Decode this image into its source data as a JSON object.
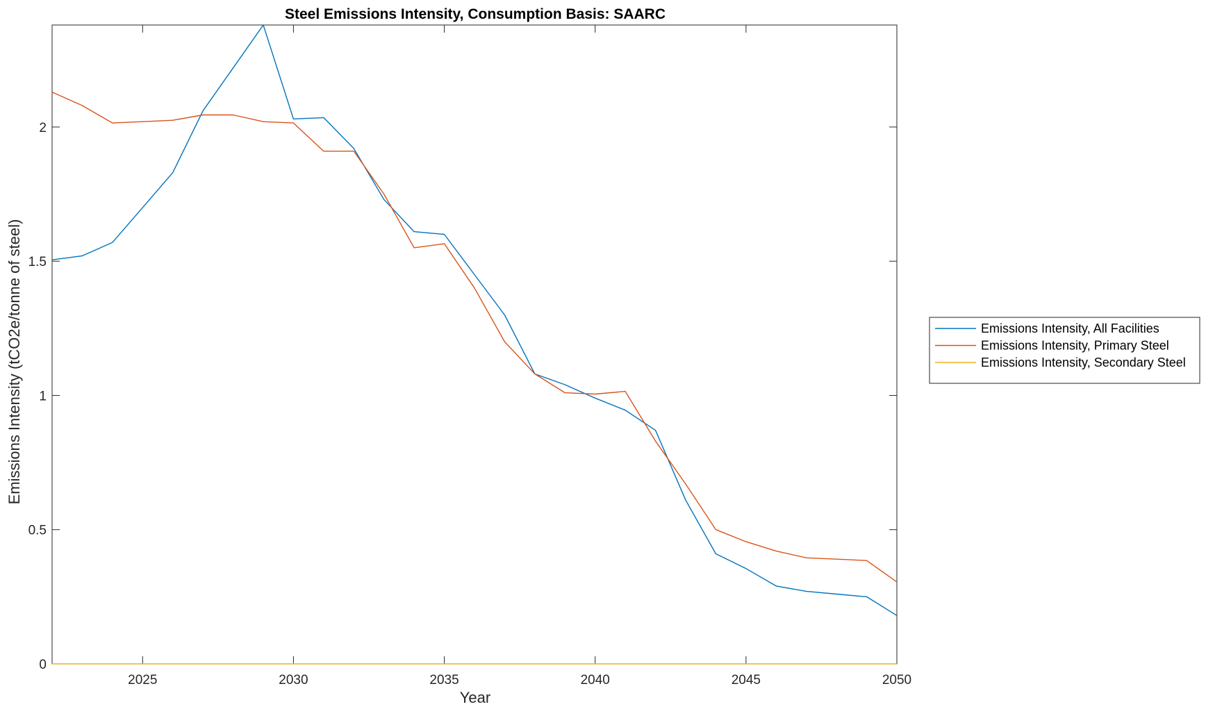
{
  "chart_data": {
    "type": "line",
    "title": "Steel Emissions Intensity, Consumption Basis: SAARC",
    "xlabel": "Year",
    "ylabel": "Emissions Intensity (tCO2e/tonne of steel)",
    "xlim": [
      2022,
      2050
    ],
    "ylim": [
      0,
      2.38
    ],
    "xticks": [
      2025,
      2030,
      2035,
      2040,
      2045,
      2050
    ],
    "yticks": [
      0,
      0.5,
      1,
      1.5,
      2
    ],
    "ytick_labels": [
      "0",
      "0.5",
      "1",
      "1.5",
      "2"
    ],
    "grid": false,
    "legend_position": "outside-right",
    "x": [
      2022,
      2023,
      2024,
      2025,
      2026,
      2027,
      2028,
      2029,
      2030,
      2031,
      2032,
      2033,
      2034,
      2035,
      2036,
      2037,
      2038,
      2039,
      2040,
      2041,
      2042,
      2043,
      2044,
      2045,
      2046,
      2047,
      2048,
      2049,
      2050
    ],
    "series": [
      {
        "name": "Emissions Intensity, All Facilities",
        "color": "#0072BD",
        "values": [
          1.505,
          1.52,
          1.57,
          1.7,
          1.83,
          2.06,
          2.22,
          2.38,
          2.03,
          2.035,
          1.92,
          1.73,
          1.61,
          1.6,
          1.45,
          1.3,
          1.08,
          1.04,
          0.99,
          0.945,
          0.87,
          0.61,
          0.41,
          0.355,
          0.29,
          0.27,
          0.26,
          0.25,
          0.18
        ]
      },
      {
        "name": "Emissions Intensity, Primary Steel",
        "color": "#D95319",
        "values": [
          2.13,
          2.08,
          2.015,
          2.02,
          2.025,
          2.045,
          2.045,
          2.02,
          2.015,
          1.91,
          1.91,
          1.75,
          1.55,
          1.565,
          1.4,
          1.2,
          1.08,
          1.01,
          1.005,
          1.015,
          0.83,
          0.67,
          0.5,
          0.455,
          0.42,
          0.395,
          0.39,
          0.385,
          0.305
        ]
      },
      {
        "name": "Emissions Intensity, Secondary Steel",
        "color": "#EDB120",
        "values": [
          0,
          0,
          0,
          0,
          0,
          0,
          0,
          0,
          0,
          0,
          0,
          0,
          0,
          0,
          0,
          0,
          0,
          0,
          0,
          0,
          0,
          0,
          0,
          0,
          0,
          0,
          0,
          0,
          0
        ]
      }
    ]
  }
}
